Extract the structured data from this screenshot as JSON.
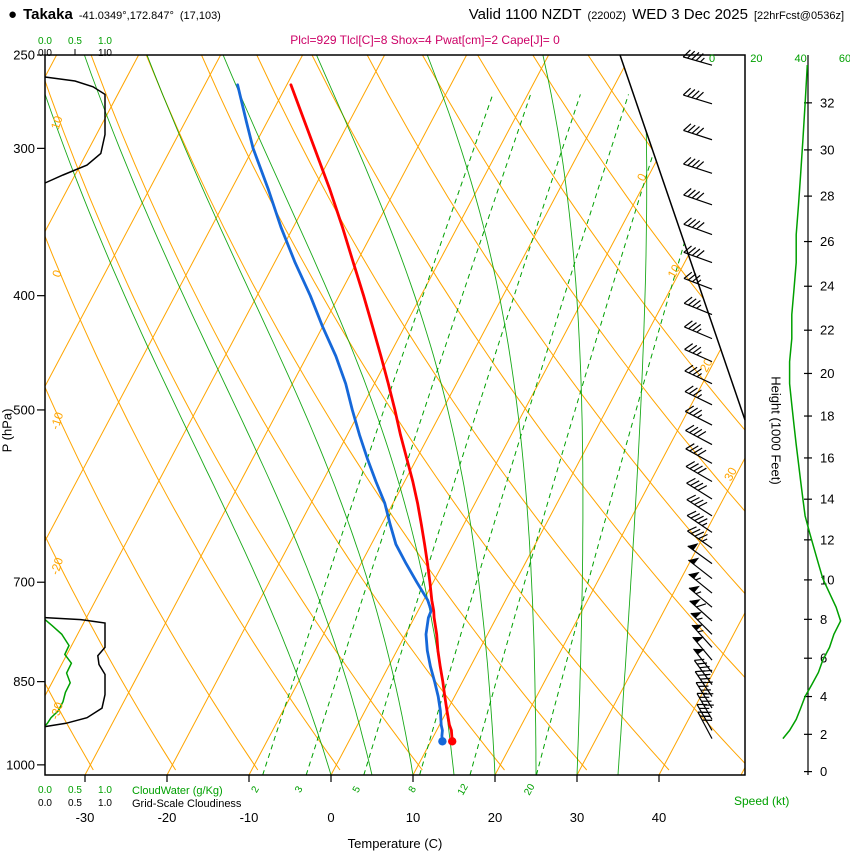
{
  "header": {
    "dot": "●",
    "station": "Takaka",
    "coords": "-41.0349°,172.847°",
    "grid_point": "(17,103)",
    "valid": "Valid 1100 NZDT",
    "valid_z": "(2200Z)",
    "valid_date": "WED 3 Dec 2025",
    "forecast_tag": "[22hrFcst@0536z]"
  },
  "indices_line": "Plcl=929 Tlcl[C]=8 Shox=4 Pwat[cm]=2 Cape[J]= 0",
  "axes": {
    "pressure_label": "P (hPa)",
    "temp_label": "Temperature (C)",
    "height_label": "Height (1000 Feet)",
    "speed_label": "Speed (kt)",
    "cloudwater_label": "CloudWater (g/Kg)",
    "cloudiness_label": "Grid-Scale Cloudiness",
    "unit_ticks": [
      "0.0",
      "0.5",
      "1.0"
    ]
  },
  "chart_data": {
    "type": "line",
    "variant": "skew-t log-p atmospheric sounding",
    "title": "Takaka forecast sounding valid 1100 NZDT WED 3 Dec 2025",
    "pressure_ticks": [
      250,
      300,
      400,
      500,
      700,
      850,
      1000
    ],
    "temperature_ticks": [
      -30,
      -20,
      -10,
      0,
      10,
      20,
      30,
      40
    ],
    "height_ticks_kft": [
      0,
      2,
      4,
      6,
      8,
      10,
      12,
      14,
      16,
      18,
      20,
      22,
      24,
      26,
      28,
      30,
      32
    ],
    "speed_ticks_kt": [
      0,
      20,
      40,
      60
    ],
    "isotherm_labels_c": [
      0,
      10,
      20,
      30
    ],
    "dry_adiabat_labels_c": [
      10,
      0,
      -10,
      -20,
      -30
    ],
    "mixing_ratio_labels_gkg": [
      2,
      3,
      5,
      8,
      12,
      20
    ],
    "moist_adiabat_surface_temps_c": [
      0,
      5,
      10,
      15,
      20,
      25,
      30,
      35
    ],
    "axis_ranges": {
      "pressure_hpa": [
        250,
        1020
      ],
      "surface_temp_c": [
        -34.9,
        50.5
      ]
    },
    "sounding": {
      "pressure_hpa": [
        955,
        945,
        935,
        925,
        900,
        875,
        850,
        825,
        800,
        775,
        750,
        740,
        725,
        700,
        675,
        650,
        625,
        600,
        575,
        550,
        525,
        500,
        475,
        450,
        425,
        400,
        375,
        350,
        325,
        300,
        285,
        265
      ],
      "temperature_c": [
        12.6,
        12.2,
        11.8,
        11.2,
        10.0,
        8.8,
        7.6,
        6.3,
        5.0,
        3.8,
        2.4,
        1.9,
        1.0,
        -0.4,
        -1.9,
        -3.5,
        -5.2,
        -7.0,
        -9.0,
        -11.2,
        -13.5,
        -15.8,
        -18.3,
        -21.0,
        -23.9,
        -27.0,
        -30.4,
        -34.0,
        -38.0,
        -42.5,
        -45.4,
        -49.5
      ],
      "dewpoint_c": [
        11.4,
        11.0,
        10.7,
        10.2,
        9.2,
        8.0,
        6.6,
        5.1,
        3.7,
        2.5,
        1.7,
        1.6,
        0.5,
        -2.0,
        -4.5,
        -7.0,
        -9.0,
        -11.0,
        -13.5,
        -16.0,
        -18.5,
        -21.0,
        -23.5,
        -26.5,
        -30.0,
        -33.5,
        -37.5,
        -41.5,
        -45.5,
        -50.0,
        -52.5,
        -56.0
      ]
    },
    "winds": {
      "pressure_hpa": [
        950,
        935,
        915,
        895,
        875,
        855,
        835,
        815,
        795,
        775,
        755,
        735,
        715,
        695,
        675,
        655,
        635,
        615,
        595,
        575,
        555,
        535,
        515,
        495,
        475,
        455,
        435,
        415,
        395,
        375,
        355,
        335,
        315,
        295,
        275,
        255
      ],
      "direction_deg": [
        332,
        330,
        330,
        328,
        326,
        324,
        322,
        320,
        318,
        315,
        312,
        310,
        309,
        308,
        306,
        305,
        304,
        303,
        302,
        300,
        299,
        298,
        297,
        296,
        295,
        294,
        293,
        292,
        291,
        290,
        290,
        289,
        288,
        288,
        287,
        286
      ],
      "speed_kt": [
        32,
        35,
        38,
        40,
        42,
        45,
        48,
        50,
        53,
        55,
        58,
        56,
        53,
        50,
        48,
        46,
        44,
        42,
        41,
        40,
        39,
        38,
        37,
        36,
        35,
        35,
        36,
        36,
        37,
        38,
        38,
        39,
        40,
        41,
        42,
        43
      ]
    },
    "grid_scale_cloudiness": [
      [
        [
          261,
          0
        ],
        [
          263,
          0.5
        ],
        [
          266,
          0.8
        ],
        [
          270,
          1.0
        ],
        [
          292,
          1.0
        ],
        [
          303,
          0.93
        ],
        [
          310,
          0.7
        ],
        [
          316,
          0.3
        ],
        [
          321,
          0
        ]
      ],
      [
        [
          750,
          0
        ],
        [
          753,
          0.6
        ],
        [
          758,
          1.0
        ],
        [
          795,
          1.0
        ],
        [
          808,
          0.88
        ],
        [
          822,
          0.9
        ],
        [
          838,
          1.0
        ],
        [
          872,
          1.0
        ],
        [
          895,
          0.95
        ],
        [
          912,
          0.7
        ],
        [
          922,
          0.35
        ],
        [
          928,
          0
        ]
      ]
    ],
    "cloud_water_gkg": [
      [
        753,
        0
      ],
      [
        762,
        0.12
      ],
      [
        775,
        0.28
      ],
      [
        792,
        0.4
      ],
      [
        806,
        0.33
      ],
      [
        820,
        0.44
      ],
      [
        836,
        0.36
      ],
      [
        852,
        0.42
      ],
      [
        868,
        0.34
      ],
      [
        884,
        0.3
      ],
      [
        900,
        0.22
      ],
      [
        912,
        0.1
      ],
      [
        922,
        0.04
      ],
      [
        927,
        0
      ]
    ],
    "colors": {
      "isotherms": "#ffa500",
      "moist_lines": "#00a000",
      "temperature": "#ff0000",
      "dewpoint": "#1668d9",
      "indices": "#cc0066",
      "barbs": "#000000",
      "frame": "#000000"
    }
  }
}
